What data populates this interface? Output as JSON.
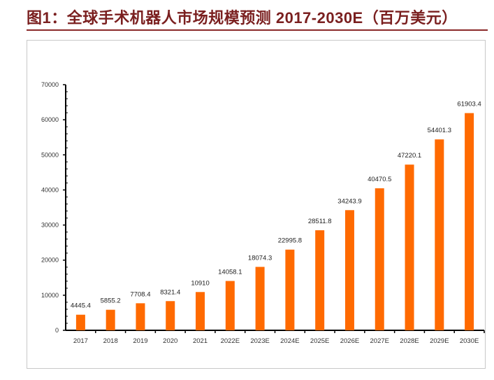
{
  "title": "图1：全球手术机器人市场规模预测 2017-2030E（百万美元）",
  "chart_data": {
    "type": "bar",
    "title": "",
    "xlabel": "",
    "ylabel": "",
    "categories": [
      "2017",
      "2018",
      "2019",
      "2020",
      "2021",
      "2022E",
      "2023E",
      "2024E",
      "2025E",
      "2026E",
      "2027E",
      "2028E",
      "2029E",
      "2030E"
    ],
    "values": [
      4445.4,
      5855.2,
      7708.4,
      8321.4,
      10910,
      14058.1,
      18074.3,
      22995.8,
      28511.8,
      34243.9,
      40470.5,
      47220.1,
      54401.3,
      61903.4
    ],
    "data_labels": [
      "4445.4",
      "5855.2",
      "7708.4",
      "8321.4",
      "10910",
      "14058.1",
      "18074.3",
      "22995.8",
      "28511.8",
      "34243.9",
      "40470.5",
      "47220.1",
      "54401.3",
      "61903.4"
    ],
    "ylim": [
      0,
      70000
    ],
    "yticks": [
      "0",
      "10000",
      "20000",
      "30000",
      "40000",
      "50000",
      "60000",
      "70000"
    ],
    "grid": false,
    "legend": "none",
    "bar_color": "#ff6a00"
  }
}
